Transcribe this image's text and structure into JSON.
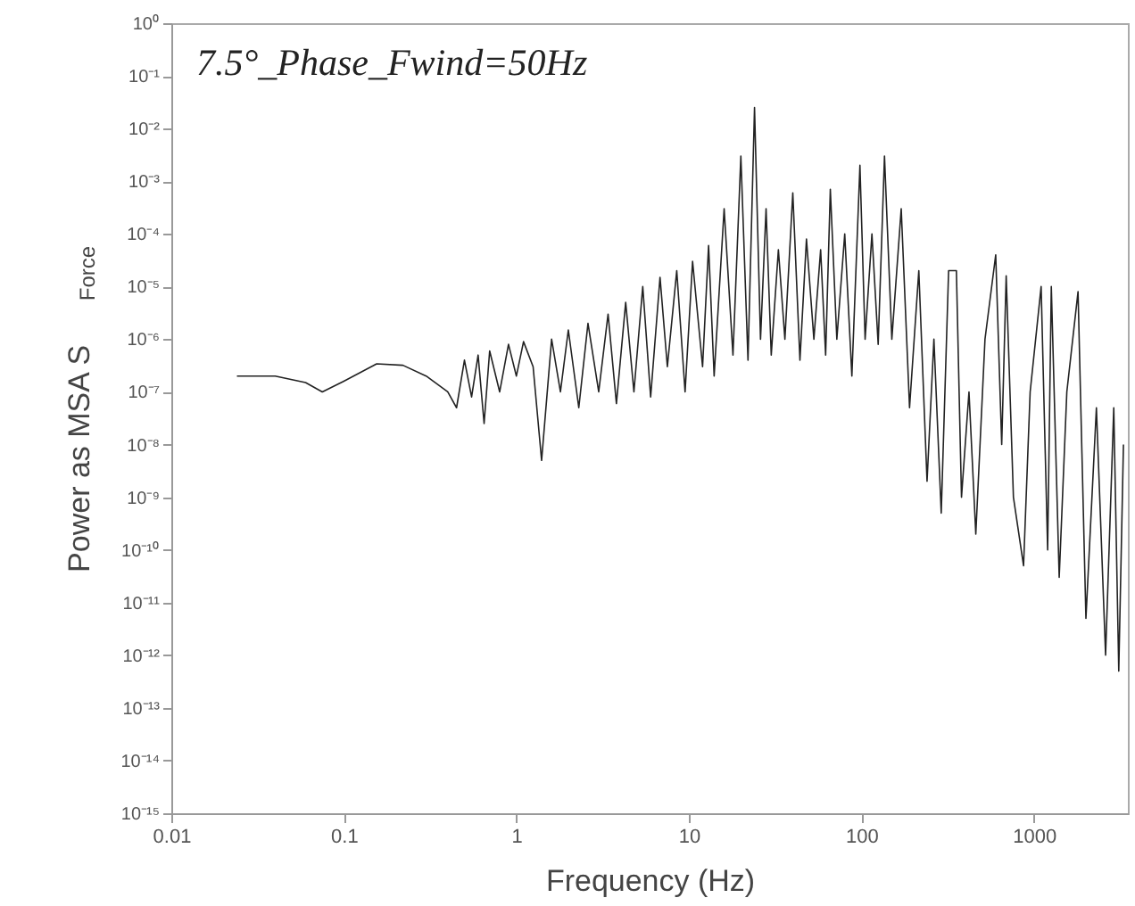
{
  "chart_data": {
    "type": "line",
    "ylabel": "Power as MSA   S$_{Force}$",
    "xlabel": "Frequency     (Hz)",
    "annotations": [
      "7.5°_Phase_Fwind=50Hz"
    ],
    "log": "xy",
    "grid": false,
    "legend": false,
    "marker": "none",
    "line_style": "solid",
    "xlim": [
      0.01,
      3500
    ],
    "xticks": [
      0.01,
      0.1,
      1,
      10,
      100,
      1000
    ],
    "ylim": [
      1e-15,
      1
    ],
    "yticks": [
      {
        "value": 1,
        "label": "10⁰"
      },
      {
        "value": 0.1,
        "label": "10⁻¹"
      },
      {
        "value": 0.01,
        "label": "10⁻²"
      },
      {
        "value": 0.001,
        "label": "10⁻³"
      },
      {
        "value": 0.0001,
        "label": "10⁻⁴"
      },
      {
        "value": 1e-05,
        "label": "10⁻⁵"
      },
      {
        "value": 1e-06,
        "label": "10⁻⁶"
      },
      {
        "value": 1e-07,
        "label": "10⁻⁷"
      },
      {
        "value": 1e-08,
        "label": "10⁻⁸"
      },
      {
        "value": 1e-09,
        "label": "10⁻⁹"
      },
      {
        "value": 1e-10,
        "label": "10⁻¹⁰"
      },
      {
        "value": 1e-11,
        "label": "10⁻¹¹"
      },
      {
        "value": 1e-12,
        "label": "10⁻¹²"
      },
      {
        "value": 1e-13,
        "label": "10⁻¹³"
      },
      {
        "value": 1e-14,
        "label": "10⁻¹⁴"
      },
      {
        "value": 1e-15,
        "label": "10⁻¹⁵"
      }
    ],
    "series": [
      {
        "color": "#222222",
        "x": [
          0.024,
          0.04,
          0.06,
          0.075,
          0.1,
          0.155,
          0.22,
          0.3,
          0.4,
          0.45,
          0.5,
          0.55,
          0.6,
          0.65,
          0.7,
          0.8,
          0.9,
          1.0,
          1.1,
          1.25,
          1.4,
          1.6,
          1.8,
          2,
          2.3,
          2.6,
          3,
          3.4,
          3.8,
          4.3,
          4.8,
          5.4,
          6,
          6.8,
          7.5,
          8.5,
          9.5,
          10.5,
          12,
          13,
          14,
          16,
          18,
          20,
          22,
          24,
          26,
          28,
          30,
          33,
          36,
          40,
          44,
          48,
          53,
          58,
          62,
          66,
          72,
          80,
          88,
          98,
          105,
          115,
          125,
          136,
          150,
          170,
          190,
          215,
          240,
          263,
          290,
          320,
          355,
          380,
          420,
          460,
          520,
          600,
          650,
          690,
          760,
          870,
          950,
          1100,
          1200,
          1260,
          1400,
          1550,
          1800,
          2000,
          2300,
          2600,
          2900,
          3100,
          3300
        ],
        "values": [
          2e-07,
          2e-07,
          1.5e-07,
          1e-07,
          1.6e-07,
          3.4e-07,
          3.2e-07,
          2e-07,
          1e-07,
          5e-08,
          4e-07,
          8e-08,
          5e-07,
          2.5e-08,
          6e-07,
          1e-07,
          8e-07,
          2e-07,
          9e-07,
          3e-07,
          5e-09,
          1e-06,
          1e-07,
          1.5e-06,
          5e-08,
          2e-06,
          1e-07,
          3e-06,
          6e-08,
          5e-06,
          1e-07,
          1e-05,
          8e-08,
          1.5e-05,
          3e-07,
          2e-05,
          1e-07,
          3e-05,
          3e-07,
          6e-05,
          2e-07,
          0.0003,
          5e-07,
          0.003,
          4e-07,
          0.025,
          1e-06,
          0.0003,
          5e-07,
          5e-05,
          1e-06,
          0.0006,
          4e-07,
          8e-05,
          1e-06,
          5e-05,
          5e-07,
          0.0007,
          1e-06,
          0.0001,
          2e-07,
          0.002,
          1e-06,
          0.0001,
          8e-07,
          0.003,
          1e-06,
          0.0003,
          5e-08,
          2e-05,
          2e-09,
          1e-06,
          5e-10,
          2e-05,
          2e-05,
          1e-09,
          1e-07,
          2e-10,
          1e-06,
          4e-05,
          1e-08,
          1.6e-05,
          1e-09,
          5e-11,
          1e-07,
          1e-05,
          1e-10,
          1e-05,
          3e-11,
          1e-07,
          8e-06,
          5e-12,
          5e-08,
          1e-12,
          5e-08,
          5e-13,
          1e-08
        ]
      }
    ]
  }
}
